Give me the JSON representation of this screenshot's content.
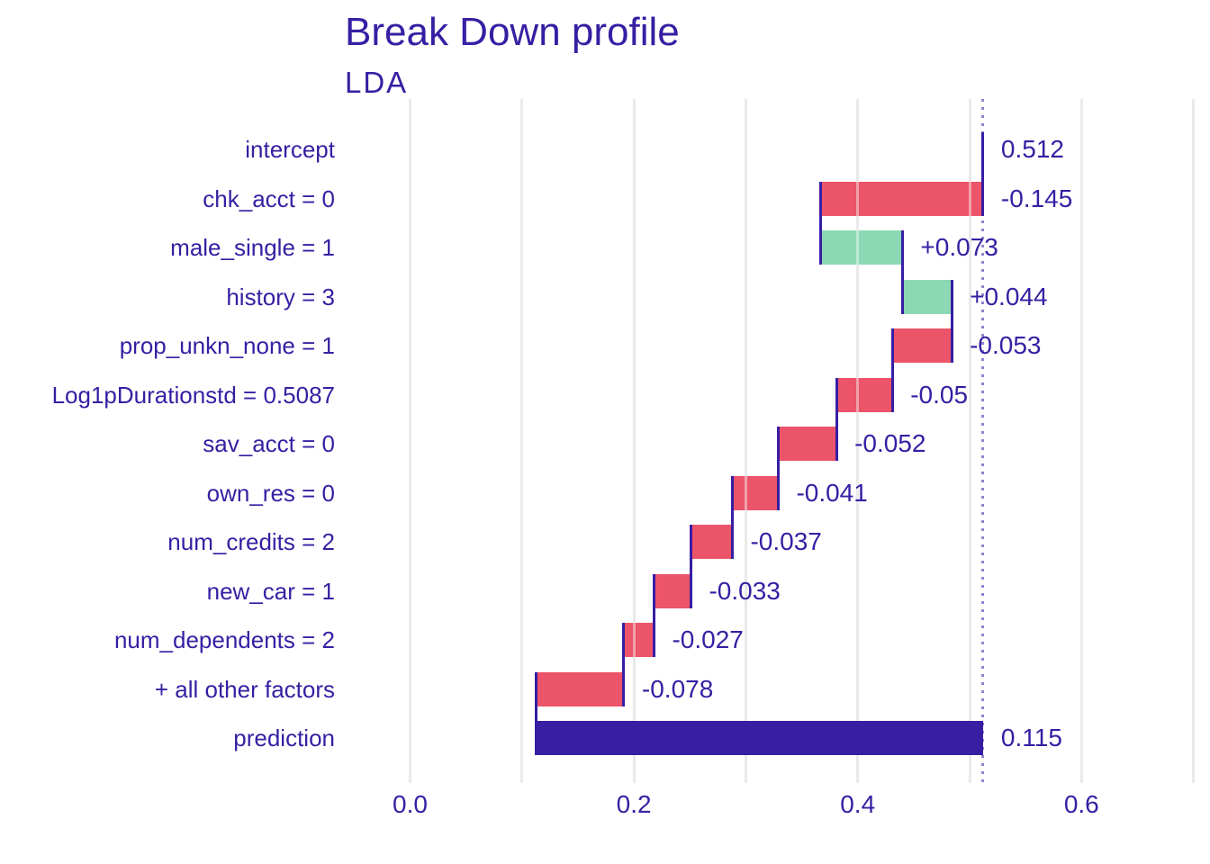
{
  "page": {
    "background": "#ffffff"
  },
  "header": {
    "title": "Break Down profile",
    "subtitle": "LDA"
  },
  "colors": {
    "positive_bar": "#8cd8b5",
    "negative_bar": "#ec5469",
    "neutral_bar": "#371ea3",
    "text": "#371ea3",
    "gridline": "#d9d9d9",
    "dotted_line": "#371ea3"
  },
  "chart_data": {
    "type": "bar",
    "variant": "waterfall-breakdown",
    "title": "Break Down profile",
    "subtitle": "LDA",
    "xlabel": "",
    "ylabel": "",
    "grid": "vertical-only",
    "legend": "none",
    "x_axis": {
      "tick_values": [
        0.0,
        0.2,
        0.4,
        0.6
      ],
      "tick_labels": [
        "0.0",
        "0.2",
        "0.4",
        "0.6"
      ],
      "gridline_values": [
        0.0,
        0.1,
        0.2,
        0.3,
        0.4,
        0.5,
        0.6,
        0.7
      ],
      "range": [
        -0.045,
        0.715
      ]
    },
    "baseline_dotted_line": 0.512,
    "rows": [
      {
        "label": "intercept",
        "contribution": 0.512,
        "value_label": "0.512",
        "start": 0.512,
        "end": 0.512,
        "kind": "intercept"
      },
      {
        "label": "chk_acct = 0",
        "contribution": -0.145,
        "value_label": "-0.145",
        "start": 0.512,
        "end": 0.367,
        "kind": "negative"
      },
      {
        "label": "male_single = 1",
        "contribution": 0.073,
        "value_label": "+0.073",
        "start": 0.367,
        "end": 0.44,
        "kind": "positive"
      },
      {
        "label": "history = 3",
        "contribution": 0.044,
        "value_label": "+0.044",
        "start": 0.44,
        "end": 0.484,
        "kind": "positive"
      },
      {
        "label": "prop_unkn_none = 1",
        "contribution": -0.053,
        "value_label": "-0.053",
        "start": 0.484,
        "end": 0.431,
        "kind": "negative"
      },
      {
        "label": "Log1pDurationstd = 0.5087",
        "contribution": -0.05,
        "value_label": "-0.05",
        "start": 0.431,
        "end": 0.381,
        "kind": "negative"
      },
      {
        "label": "sav_acct = 0",
        "contribution": -0.052,
        "value_label": "-0.052",
        "start": 0.381,
        "end": 0.329,
        "kind": "negative"
      },
      {
        "label": "own_res = 0",
        "contribution": -0.041,
        "value_label": "-0.041",
        "start": 0.329,
        "end": 0.288,
        "kind": "negative"
      },
      {
        "label": "num_credits = 2",
        "contribution": -0.037,
        "value_label": "-0.037",
        "start": 0.288,
        "end": 0.251,
        "kind": "negative"
      },
      {
        "label": "new_car = 1",
        "contribution": -0.033,
        "value_label": "-0.033",
        "start": 0.251,
        "end": 0.218,
        "kind": "negative"
      },
      {
        "label": "num_dependents = 2",
        "contribution": -0.027,
        "value_label": "-0.027",
        "start": 0.218,
        "end": 0.191,
        "kind": "negative"
      },
      {
        "label": "+ all other factors",
        "contribution": -0.078,
        "value_label": "-0.078",
        "start": 0.191,
        "end": 0.113,
        "kind": "negative"
      },
      {
        "label": "prediction",
        "contribution": 0.115,
        "value_label": "0.115",
        "start": 0.113,
        "end": 0.512,
        "kind": "prediction"
      }
    ]
  }
}
